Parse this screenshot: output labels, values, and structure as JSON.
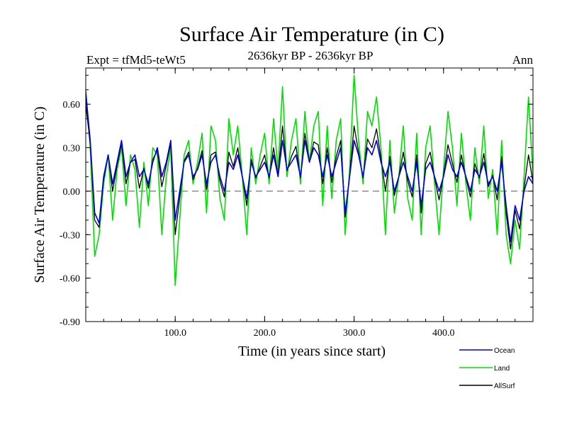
{
  "chart_data": {
    "type": "line",
    "title": "Surface Air Temperature (in C)",
    "subtitle": "2636kyr BP - 2636kyr BP",
    "left_label": "Expt = tfMd5-teWt5",
    "right_label": "Ann",
    "xlabel": "Time (in years since start)",
    "ylabel": "Surface Air Temperature (in C)",
    "xlim": [
      0,
      500
    ],
    "ylim": [
      -0.9,
      0.85
    ],
    "xticks": [
      100,
      200,
      300,
      400
    ],
    "xtick_labels": [
      "100.0",
      "200.0",
      "300.0",
      "400.0"
    ],
    "yticks": [
      -0.9,
      -0.6,
      -0.3,
      0.0,
      0.3,
      0.6
    ],
    "ytick_labels": [
      "-0.90",
      "-0.60",
      "-0.30",
      "0.00",
      "0.30",
      "0.60"
    ],
    "zero_line": true,
    "legend_position": "bottom-right",
    "series": [
      {
        "name": "Ocean",
        "color": "#0000e0",
        "x": [
          0,
          5,
          10,
          15,
          20,
          25,
          30,
          35,
          40,
          45,
          50,
          55,
          60,
          65,
          70,
          75,
          80,
          85,
          90,
          95,
          100,
          105,
          110,
          115,
          120,
          125,
          130,
          135,
          140,
          145,
          150,
          155,
          160,
          165,
          170,
          175,
          180,
          185,
          190,
          195,
          200,
          205,
          210,
          215,
          220,
          225,
          230,
          235,
          240,
          245,
          250,
          255,
          260,
          265,
          270,
          275,
          280,
          285,
          290,
          295,
          300,
          305,
          310,
          315,
          320,
          325,
          330,
          335,
          340,
          345,
          350,
          355,
          360,
          365,
          370,
          375,
          380,
          385,
          390,
          395,
          400,
          405,
          410,
          415,
          420,
          425,
          430,
          435,
          440,
          445,
          450,
          455,
          460,
          465,
          470,
          475,
          480,
          485,
          490,
          495,
          500
        ],
        "values": [
          0.68,
          0.35,
          -0.15,
          -0.22,
          0.1,
          0.25,
          0.05,
          0.2,
          0.35,
          0.1,
          0.2,
          0.25,
          0.1,
          0.15,
          0.05,
          0.2,
          0.3,
          0.1,
          0.2,
          0.35,
          -0.2,
          0.0,
          0.2,
          0.25,
          0.1,
          0.15,
          0.25,
          0.05,
          0.2,
          0.25,
          0.1,
          0.0,
          0.2,
          0.15,
          0.25,
          0.1,
          -0.05,
          0.2,
          0.1,
          0.15,
          0.2,
          0.1,
          0.25,
          0.1,
          0.35,
          0.15,
          0.2,
          0.25,
          0.1,
          0.35,
          0.2,
          0.3,
          0.25,
          0.1,
          0.25,
          0.1,
          0.2,
          0.3,
          -0.15,
          0.1,
          0.35,
          0.25,
          0.1,
          0.3,
          0.25,
          0.35,
          0.2,
          0.1,
          0.2,
          0.0,
          0.1,
          0.2,
          0.1,
          0.0,
          0.2,
          -0.1,
          0.15,
          0.2,
          0.1,
          0.0,
          0.1,
          0.25,
          0.15,
          0.1,
          0.2,
          0.1,
          0.0,
          0.15,
          0.1,
          0.2,
          0.05,
          0.1,
          0.0,
          0.2,
          -0.1,
          -0.35,
          -0.1,
          -0.2,
          0.0,
          0.1,
          0.05
        ]
      },
      {
        "name": "Land",
        "color": "#00e000",
        "x": [
          0,
          5,
          10,
          15,
          20,
          25,
          30,
          35,
          40,
          45,
          50,
          55,
          60,
          65,
          70,
          75,
          80,
          85,
          90,
          95,
          100,
          105,
          110,
          115,
          120,
          125,
          130,
          135,
          140,
          145,
          150,
          155,
          160,
          165,
          170,
          175,
          180,
          185,
          190,
          195,
          200,
          205,
          210,
          215,
          220,
          225,
          230,
          235,
          240,
          245,
          250,
          255,
          260,
          265,
          270,
          275,
          280,
          285,
          290,
          295,
          300,
          305,
          310,
          315,
          320,
          325,
          330,
          335,
          340,
          345,
          350,
          355,
          360,
          365,
          370,
          375,
          380,
          385,
          390,
          395,
          400,
          405,
          410,
          415,
          420,
          425,
          430,
          435,
          440,
          445,
          450,
          455,
          460,
          465,
          470,
          475,
          480,
          485,
          490,
          495,
          500
        ],
        "values": [
          0.7,
          0.3,
          -0.45,
          -0.3,
          0.05,
          0.25,
          -0.2,
          0.15,
          0.3,
          -0.1,
          0.25,
          0.15,
          -0.25,
          0.2,
          -0.1,
          0.3,
          0.25,
          -0.3,
          0.1,
          0.3,
          -0.65,
          -0.2,
          0.25,
          0.35,
          0.05,
          0.2,
          0.4,
          -0.15,
          0.45,
          0.35,
          -0.05,
          -0.2,
          0.5,
          0.25,
          0.45,
          0.1,
          -0.3,
          0.3,
          0.05,
          0.25,
          0.4,
          0.05,
          0.5,
          0.15,
          0.72,
          0.1,
          0.35,
          0.5,
          0.05,
          0.55,
          0.2,
          0.45,
          0.55,
          -0.1,
          0.45,
          -0.05,
          0.35,
          0.5,
          -0.3,
          0.15,
          0.8,
          0.35,
          0.05,
          0.55,
          0.45,
          0.65,
          0.3,
          -0.3,
          0.35,
          -0.15,
          0.1,
          0.45,
          -0.05,
          -0.2,
          0.4,
          -0.3,
          0.3,
          0.45,
          0.05,
          -0.3,
          0.15,
          0.55,
          0.3,
          -0.1,
          0.4,
          0.05,
          -0.2,
          0.3,
          0.05,
          0.45,
          -0.05,
          0.15,
          -0.3,
          0.35,
          -0.3,
          -0.5,
          -0.2,
          -0.4,
          0.1,
          0.65,
          0.1
        ]
      },
      {
        "name": "AllSurf",
        "color": "#000000",
        "x": [
          0,
          5,
          10,
          15,
          20,
          25,
          30,
          35,
          40,
          45,
          50,
          55,
          60,
          65,
          70,
          75,
          80,
          85,
          90,
          95,
          100,
          105,
          110,
          115,
          120,
          125,
          130,
          135,
          140,
          145,
          150,
          155,
          160,
          165,
          170,
          175,
          180,
          185,
          190,
          195,
          200,
          205,
          210,
          215,
          220,
          225,
          230,
          235,
          240,
          245,
          250,
          255,
          260,
          265,
          270,
          275,
          280,
          285,
          290,
          295,
          300,
          305,
          310,
          315,
          320,
          325,
          330,
          335,
          340,
          345,
          350,
          355,
          360,
          365,
          370,
          375,
          380,
          385,
          390,
          395,
          400,
          405,
          410,
          415,
          420,
          425,
          430,
          435,
          440,
          445,
          450,
          455,
          460,
          465,
          470,
          475,
          480,
          485,
          490,
          495,
          500
        ],
        "values": [
          0.6,
          0.33,
          -0.2,
          -0.25,
          0.08,
          0.25,
          0.0,
          0.18,
          0.33,
          0.05,
          0.2,
          0.22,
          0.02,
          0.16,
          0.02,
          0.22,
          0.28,
          0.03,
          0.18,
          0.33,
          -0.3,
          -0.05,
          0.21,
          0.27,
          0.08,
          0.16,
          0.28,
          0.01,
          0.25,
          0.27,
          0.07,
          -0.04,
          0.27,
          0.17,
          0.3,
          0.1,
          -0.1,
          0.22,
          0.09,
          0.17,
          0.25,
          0.09,
          0.3,
          0.11,
          0.45,
          0.14,
          0.24,
          0.31,
          0.09,
          0.4,
          0.2,
          0.34,
          0.32,
          0.05,
          0.3,
          0.06,
          0.24,
          0.35,
          -0.18,
          0.11,
          0.45,
          0.27,
          0.09,
          0.36,
          0.3,
          0.43,
          0.23,
          0.0,
          0.24,
          -0.03,
          0.1,
          0.27,
          0.07,
          -0.04,
          0.25,
          -0.15,
          0.19,
          0.27,
          0.09,
          -0.06,
          0.11,
          0.32,
          0.19,
          0.06,
          0.25,
          0.09,
          -0.04,
          0.19,
          0.09,
          0.26,
          0.03,
          0.11,
          -0.06,
          0.24,
          -0.15,
          -0.4,
          -0.13,
          -0.26,
          0.02,
          0.25,
          0.06
        ]
      }
    ]
  }
}
